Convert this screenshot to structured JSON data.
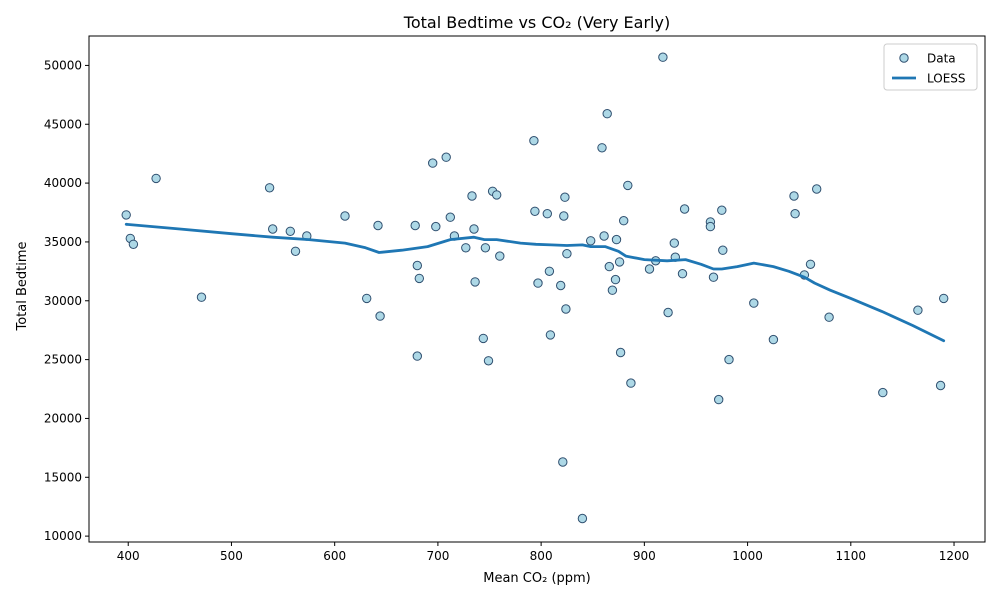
{
  "chart_data": {
    "type": "scatter",
    "title": "Total Bedtime  vs CO₂ (Very Early)",
    "xlabel": "Mean CO₂ (ppm)",
    "ylabel": "Total Bedtime",
    "xlim": [
      362,
      1230
    ],
    "ylim": [
      9500,
      52500
    ],
    "xticks": [
      400,
      500,
      600,
      700,
      800,
      900,
      1000,
      1100,
      1200
    ],
    "yticks": [
      10000,
      15000,
      20000,
      25000,
      30000,
      35000,
      40000,
      45000,
      50000
    ],
    "grid": false,
    "legend": {
      "position": "top-right",
      "entries": [
        {
          "label": "Data",
          "kind": "marker"
        },
        {
          "label": "LOESS",
          "kind": "line"
        }
      ]
    },
    "colors": {
      "marker_fill": "#add8e6",
      "marker_edge": "#2f4f6f",
      "line": "#1f77b4"
    },
    "series": [
      {
        "name": "Data",
        "kind": "scatter",
        "points": [
          [
            398,
            37300
          ],
          [
            402,
            35300
          ],
          [
            405,
            34800
          ],
          [
            427,
            40400
          ],
          [
            471,
            30300
          ],
          [
            537,
            39600
          ],
          [
            540,
            36100
          ],
          [
            557,
            35900
          ],
          [
            562,
            34200
          ],
          [
            573,
            35500
          ],
          [
            610,
            37200
          ],
          [
            631,
            30200
          ],
          [
            642,
            36400
          ],
          [
            644,
            28700
          ],
          [
            678,
            36400
          ],
          [
            680,
            33000
          ],
          [
            680,
            25300
          ],
          [
            682,
            31900
          ],
          [
            695,
            41700
          ],
          [
            698,
            36300
          ],
          [
            708,
            42200
          ],
          [
            712,
            37100
          ],
          [
            716,
            35500
          ],
          [
            727,
            34500
          ],
          [
            733,
            38900
          ],
          [
            735,
            36100
          ],
          [
            736,
            31600
          ],
          [
            744,
            26800
          ],
          [
            746,
            34500
          ],
          [
            749,
            24900
          ],
          [
            753,
            39300
          ],
          [
            757,
            39000
          ],
          [
            760,
            33800
          ],
          [
            793,
            43600
          ],
          [
            794,
            37600
          ],
          [
            797,
            31500
          ],
          [
            806,
            37400
          ],
          [
            808,
            32500
          ],
          [
            809,
            27100
          ],
          [
            819,
            31300
          ],
          [
            821,
            16300
          ],
          [
            822,
            37200
          ],
          [
            823,
            38800
          ],
          [
            824,
            29300
          ],
          [
            825,
            34000
          ],
          [
            840,
            11500
          ],
          [
            848,
            35100
          ],
          [
            859,
            43000
          ],
          [
            861,
            35500
          ],
          [
            864,
            45900
          ],
          [
            866,
            32900
          ],
          [
            869,
            30900
          ],
          [
            872,
            31800
          ],
          [
            873,
            35200
          ],
          [
            876,
            33300
          ],
          [
            877,
            25600
          ],
          [
            880,
            36800
          ],
          [
            884,
            39800
          ],
          [
            887,
            23000
          ],
          [
            905,
            32700
          ],
          [
            911,
            33400
          ],
          [
            918,
            50700
          ],
          [
            923,
            29000
          ],
          [
            929,
            34900
          ],
          [
            930,
            33700
          ],
          [
            937,
            32300
          ],
          [
            939,
            37800
          ],
          [
            964,
            36700
          ],
          [
            964,
            36300
          ],
          [
            967,
            32000
          ],
          [
            972,
            21600
          ],
          [
            975,
            37700
          ],
          [
            976,
            34300
          ],
          [
            982,
            25000
          ],
          [
            1006,
            29800
          ],
          [
            1025,
            26700
          ],
          [
            1045,
            38900
          ],
          [
            1046,
            37400
          ],
          [
            1055,
            32200
          ],
          [
            1061,
            33100
          ],
          [
            1067,
            39500
          ],
          [
            1079,
            28600
          ],
          [
            1131,
            22200
          ],
          [
            1165,
            29200
          ],
          [
            1187,
            22800
          ],
          [
            1190,
            30200
          ]
        ]
      },
      {
        "name": "LOESS",
        "kind": "line",
        "points": [
          [
            398,
            36500
          ],
          [
            450,
            36100
          ],
          [
            500,
            35700
          ],
          [
            540,
            35400
          ],
          [
            575,
            35200
          ],
          [
            610,
            34900
          ],
          [
            630,
            34500
          ],
          [
            643,
            34100
          ],
          [
            665,
            34300
          ],
          [
            690,
            34600
          ],
          [
            712,
            35200
          ],
          [
            735,
            35400
          ],
          [
            745,
            35200
          ],
          [
            757,
            35200
          ],
          [
            780,
            34900
          ],
          [
            795,
            34800
          ],
          [
            810,
            34750
          ],
          [
            825,
            34700
          ],
          [
            840,
            34750
          ],
          [
            848,
            34600
          ],
          [
            862,
            34600
          ],
          [
            875,
            34200
          ],
          [
            882,
            33800
          ],
          [
            900,
            33500
          ],
          [
            922,
            33400
          ],
          [
            940,
            33500
          ],
          [
            955,
            33100
          ],
          [
            967,
            32700
          ],
          [
            975,
            32700
          ],
          [
            990,
            32900
          ],
          [
            1006,
            33200
          ],
          [
            1025,
            32900
          ],
          [
            1040,
            32500
          ],
          [
            1055,
            32000
          ],
          [
            1065,
            31500
          ],
          [
            1080,
            30900
          ],
          [
            1100,
            30200
          ],
          [
            1130,
            29100
          ],
          [
            1160,
            27900
          ],
          [
            1190,
            26600
          ]
        ]
      }
    ]
  }
}
